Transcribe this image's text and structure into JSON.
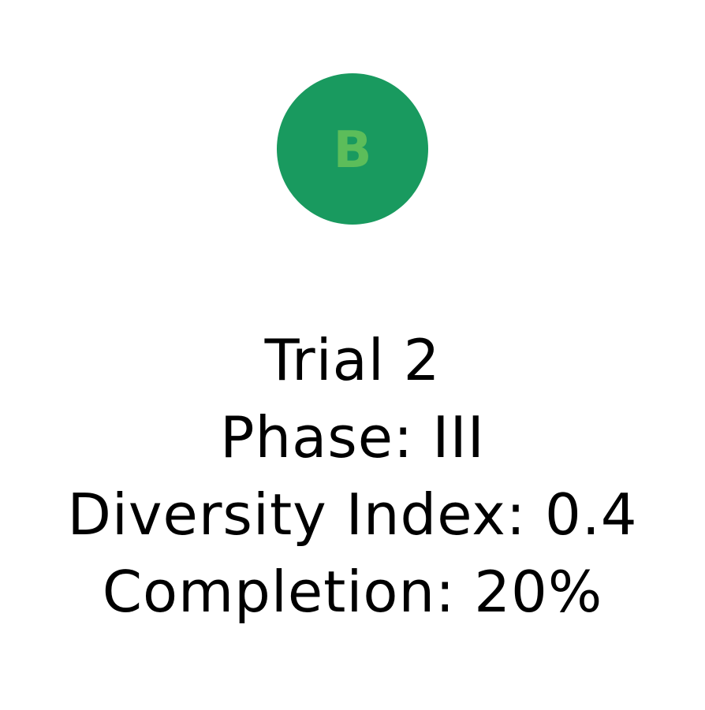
{
  "badge": {
    "letter": "B",
    "circle_color": "#199a5f",
    "letter_color": "#5cbd5a"
  },
  "info": {
    "title": "Trial 2",
    "phase": "Phase: III",
    "diversity": "Diversity Index: 0.4",
    "completion": "Completion: 20%"
  }
}
